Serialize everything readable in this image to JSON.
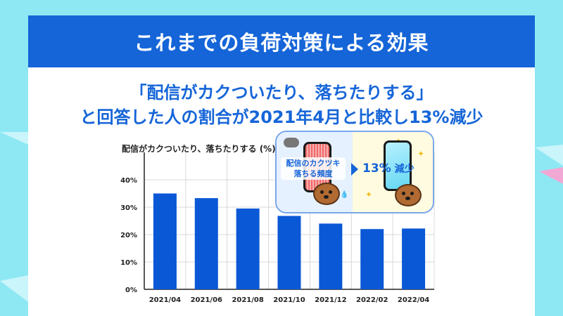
{
  "banner_title": "これまでの負荷対策による効果",
  "headline_line1": "「配信がカクついたり、落ちたりする」",
  "headline_line2": "と回答した人の割合が2021年4月と比較し13%減少",
  "inset": {
    "bad_label_line1": "配信のカクツキ",
    "bad_label_line2": "落ちる頻度",
    "reduction_value": "13%",
    "reduction_label": "減少",
    "colors": {
      "border": "#7aa7ec",
      "left_bg": "#e6f1ff",
      "right_bg": "#fffbe0"
    }
  },
  "colors": {
    "brand": "#1565d8",
    "bar": "#0a58d6",
    "background": "#8ee8f4",
    "grid": "#d8d8d8"
  },
  "chart_data": {
    "type": "bar",
    "title": "配信がカクついたり、落ちたりする (%)",
    "categories": [
      "2021/04",
      "2021/06",
      "2021/08",
      "2021/10",
      "2021/12",
      "2022/02",
      "2022/04"
    ],
    "values": [
      35,
      33.3,
      29.5,
      26.8,
      24,
      22,
      22.2
    ],
    "y_ticks": [
      "0%",
      "10%",
      "20%",
      "30%",
      "40%"
    ],
    "ylim": [
      0,
      50
    ],
    "grid": true,
    "legend": "none"
  }
}
